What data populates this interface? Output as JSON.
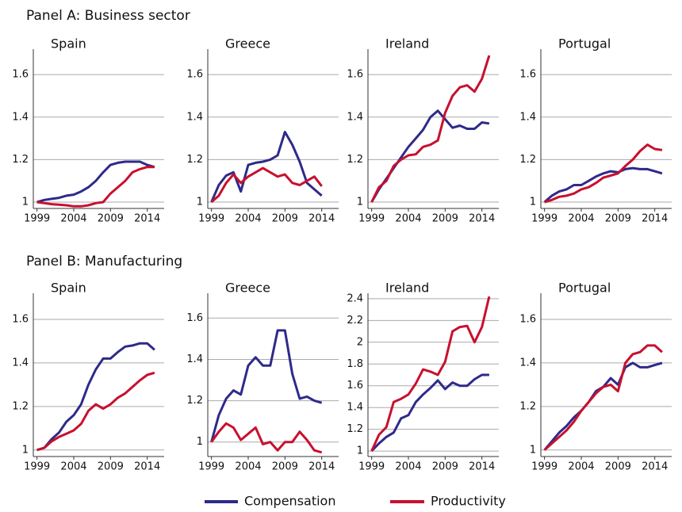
{
  "panel_titles": [
    "Panel A: Business sector",
    "Panel B: Manufacturing"
  ],
  "chart_data": [
    {
      "type": "line",
      "title": "Spain",
      "x": [
        1999,
        2000,
        2001,
        2002,
        2003,
        2004,
        2005,
        2006,
        2007,
        2008,
        2009,
        2010,
        2011,
        2012,
        2013,
        2014,
        2015
      ],
      "xlim": [
        1998.5,
        2016.3
      ],
      "xticks": [
        1999,
        2004,
        2009,
        2014
      ],
      "ylim": [
        0.97,
        1.72
      ],
      "yticks": [
        1,
        1.2,
        1.4,
        1.6
      ],
      "grid": true,
      "series": [
        {
          "name": "Compensation",
          "color": "#2e2a8a",
          "values": [
            1,
            1.01,
            1.015,
            1.02,
            1.03,
            1.035,
            1.05,
            1.07,
            1.1,
            1.14,
            1.175,
            1.185,
            1.19,
            1.19,
            1.19,
            1.175,
            1.165
          ]
        },
        {
          "name": "Productivity",
          "color": "#c8102e",
          "values": [
            1,
            0.995,
            0.99,
            0.988,
            0.985,
            0.98,
            0.98,
            0.985,
            0.995,
            1.0,
            1.04,
            1.07,
            1.1,
            1.14,
            1.155,
            1.165,
            1.165
          ]
        }
      ]
    },
    {
      "type": "line",
      "title": "Greece",
      "x": [
        1999,
        2000,
        2001,
        2002,
        2003,
        2004,
        2005,
        2006,
        2007,
        2008,
        2009,
        2010,
        2011,
        2012,
        2013,
        2014,
        2015
      ],
      "xlim": [
        1998.5,
        2016.3
      ],
      "xticks": [
        1999,
        2004,
        2009,
        2014
      ],
      "ylim": [
        0.97,
        1.72
      ],
      "yticks": [
        1,
        1.2,
        1.4,
        1.6
      ],
      "grid": true,
      "series": [
        {
          "name": "Compensation",
          "color": "#2e2a8a",
          "values": [
            1,
            1.08,
            1.125,
            1.14,
            1.05,
            1.175,
            1.185,
            1.19,
            1.2,
            1.22,
            1.33,
            1.27,
            1.19,
            1.09,
            1.06,
            1.03,
            null
          ]
        },
        {
          "name": "Productivity",
          "color": "#c8102e",
          "values": [
            1,
            1.03,
            1.09,
            1.13,
            1.09,
            1.12,
            1.14,
            1.16,
            1.14,
            1.12,
            1.13,
            1.09,
            1.08,
            1.1,
            1.12,
            1.075,
            null
          ]
        }
      ]
    },
    {
      "type": "line",
      "title": "Ireland",
      "x": [
        1999,
        2000,
        2001,
        2002,
        2003,
        2004,
        2005,
        2006,
        2007,
        2008,
        2009,
        2010,
        2011,
        2012,
        2013,
        2014,
        2015
      ],
      "xlim": [
        1998.5,
        2016.3
      ],
      "xticks": [
        1999,
        2004,
        2009,
        2014
      ],
      "ylim": [
        0.97,
        1.72
      ],
      "yticks": [
        1,
        1.2,
        1.4,
        1.6
      ],
      "grid": true,
      "series": [
        {
          "name": "Compensation",
          "color": "#2e2a8a",
          "values": [
            1,
            1.06,
            1.11,
            1.16,
            1.21,
            1.26,
            1.3,
            1.34,
            1.4,
            1.43,
            1.39,
            1.35,
            1.36,
            1.345,
            1.345,
            1.375,
            1.37
          ]
        },
        {
          "name": "Productivity",
          "color": "#c8102e",
          "values": [
            1,
            1.07,
            1.1,
            1.17,
            1.2,
            1.22,
            1.225,
            1.26,
            1.27,
            1.29,
            1.42,
            1.5,
            1.54,
            1.55,
            1.52,
            1.58,
            1.69
          ]
        }
      ]
    },
    {
      "type": "line",
      "title": "Portugal",
      "x": [
        1999,
        2000,
        2001,
        2002,
        2003,
        2004,
        2005,
        2006,
        2007,
        2008,
        2009,
        2010,
        2011,
        2012,
        2013,
        2014,
        2015
      ],
      "xlim": [
        1998.5,
        2016.3
      ],
      "xticks": [
        1999,
        2004,
        2009,
        2014
      ],
      "ylim": [
        0.97,
        1.72
      ],
      "yticks": [
        1,
        1.2,
        1.4,
        1.6
      ],
      "grid": true,
      "series": [
        {
          "name": "Compensation",
          "color": "#2e2a8a",
          "values": [
            1,
            1.03,
            1.05,
            1.06,
            1.08,
            1.08,
            1.1,
            1.12,
            1.135,
            1.145,
            1.14,
            1.155,
            1.16,
            1.155,
            1.155,
            1.145,
            1.135
          ]
        },
        {
          "name": "Productivity",
          "color": "#c8102e",
          "values": [
            1,
            1.01,
            1.025,
            1.03,
            1.04,
            1.06,
            1.07,
            1.09,
            1.115,
            1.125,
            1.135,
            1.17,
            1.2,
            1.24,
            1.27,
            1.25,
            1.245
          ]
        }
      ]
    },
    {
      "type": "line",
      "title": "Spain",
      "x": [
        1999,
        2000,
        2001,
        2002,
        2003,
        2004,
        2005,
        2006,
        2007,
        2008,
        2009,
        2010,
        2011,
        2012,
        2013,
        2014,
        2015
      ],
      "xlim": [
        1998.5,
        2016.3
      ],
      "xticks": [
        1999,
        2004,
        2009,
        2014
      ],
      "ylim": [
        0.97,
        1.72
      ],
      "yticks": [
        1,
        1.2,
        1.4,
        1.6
      ],
      "grid": true,
      "series": [
        {
          "name": "Compensation",
          "color": "#2e2a8a",
          "values": [
            1,
            1.01,
            1.05,
            1.08,
            1.13,
            1.16,
            1.21,
            1.3,
            1.37,
            1.42,
            1.42,
            1.45,
            1.475,
            1.48,
            1.49,
            1.49,
            1.46
          ]
        },
        {
          "name": "Productivity",
          "color": "#c8102e",
          "values": [
            1,
            1.01,
            1.04,
            1.06,
            1.075,
            1.09,
            1.12,
            1.18,
            1.21,
            1.19,
            1.21,
            1.24,
            1.26,
            1.29,
            1.32,
            1.345,
            1.355
          ]
        }
      ]
    },
    {
      "type": "line",
      "title": "Greece",
      "x": [
        1999,
        2000,
        2001,
        2002,
        2003,
        2004,
        2005,
        2006,
        2007,
        2008,
        2009,
        2010,
        2011,
        2012,
        2013,
        2014,
        2015
      ],
      "xlim": [
        1998.5,
        2016.3
      ],
      "xticks": [
        1999,
        2004,
        2009,
        2014
      ],
      "ylim": [
        0.93,
        1.72
      ],
      "yticks": [
        1,
        1.2,
        1.4,
        1.6
      ],
      "grid": true,
      "series": [
        {
          "name": "Compensation",
          "color": "#2e2a8a",
          "values": [
            1,
            1.13,
            1.21,
            1.25,
            1.23,
            1.37,
            1.41,
            1.37,
            1.37,
            1.54,
            1.54,
            1.33,
            1.21,
            1.22,
            1.2,
            1.19,
            null
          ]
        },
        {
          "name": "Productivity",
          "color": "#c8102e",
          "values": [
            1,
            1.05,
            1.09,
            1.07,
            1.01,
            1.04,
            1.07,
            0.99,
            1.0,
            0.96,
            1.0,
            1.0,
            1.05,
            1.01,
            0.96,
            0.95,
            null
          ]
        }
      ]
    },
    {
      "type": "line",
      "title": "Ireland",
      "x": [
        1999,
        2000,
        2001,
        2002,
        2003,
        2004,
        2005,
        2006,
        2007,
        2008,
        2009,
        2010,
        2011,
        2012,
        2013,
        2014,
        2015
      ],
      "xlim": [
        1998.5,
        2016.3
      ],
      "xticks": [
        1999,
        2004,
        2009,
        2014
      ],
      "ylim": [
        0.95,
        2.45
      ],
      "yticks": [
        1,
        1.2,
        1.4,
        1.6,
        1.8,
        2,
        2.2,
        2.4
      ],
      "grid": true,
      "series": [
        {
          "name": "Compensation",
          "color": "#2e2a8a",
          "values": [
            1,
            1.07,
            1.13,
            1.17,
            1.3,
            1.33,
            1.45,
            1.52,
            1.58,
            1.65,
            1.57,
            1.63,
            1.6,
            1.6,
            1.66,
            1.7,
            1.7
          ]
        },
        {
          "name": "Productivity",
          "color": "#c8102e",
          "values": [
            1,
            1.15,
            1.22,
            1.45,
            1.48,
            1.52,
            1.62,
            1.75,
            1.73,
            1.7,
            1.82,
            2.1,
            2.14,
            2.15,
            2.0,
            2.14,
            2.42
          ]
        }
      ]
    },
    {
      "type": "line",
      "title": "Portugal",
      "x": [
        1999,
        2000,
        2001,
        2002,
        2003,
        2004,
        2005,
        2006,
        2007,
        2008,
        2009,
        2010,
        2011,
        2012,
        2013,
        2014,
        2015
      ],
      "xlim": [
        1998.5,
        2016.3
      ],
      "xticks": [
        1999,
        2004,
        2009,
        2014
      ],
      "ylim": [
        0.97,
        1.72
      ],
      "yticks": [
        1,
        1.2,
        1.4,
        1.6
      ],
      "grid": true,
      "series": [
        {
          "name": "Compensation",
          "color": "#2e2a8a",
          "values": [
            1,
            1.04,
            1.08,
            1.11,
            1.15,
            1.18,
            1.22,
            1.27,
            1.29,
            1.33,
            1.3,
            1.38,
            1.4,
            1.38,
            1.38,
            1.39,
            1.4
          ]
        },
        {
          "name": "Productivity",
          "color": "#c8102e",
          "values": [
            1,
            1.03,
            1.06,
            1.09,
            1.13,
            1.18,
            1.22,
            1.26,
            1.29,
            1.3,
            1.27,
            1.4,
            1.44,
            1.45,
            1.48,
            1.48,
            1.45
          ]
        }
      ]
    }
  ]
}
